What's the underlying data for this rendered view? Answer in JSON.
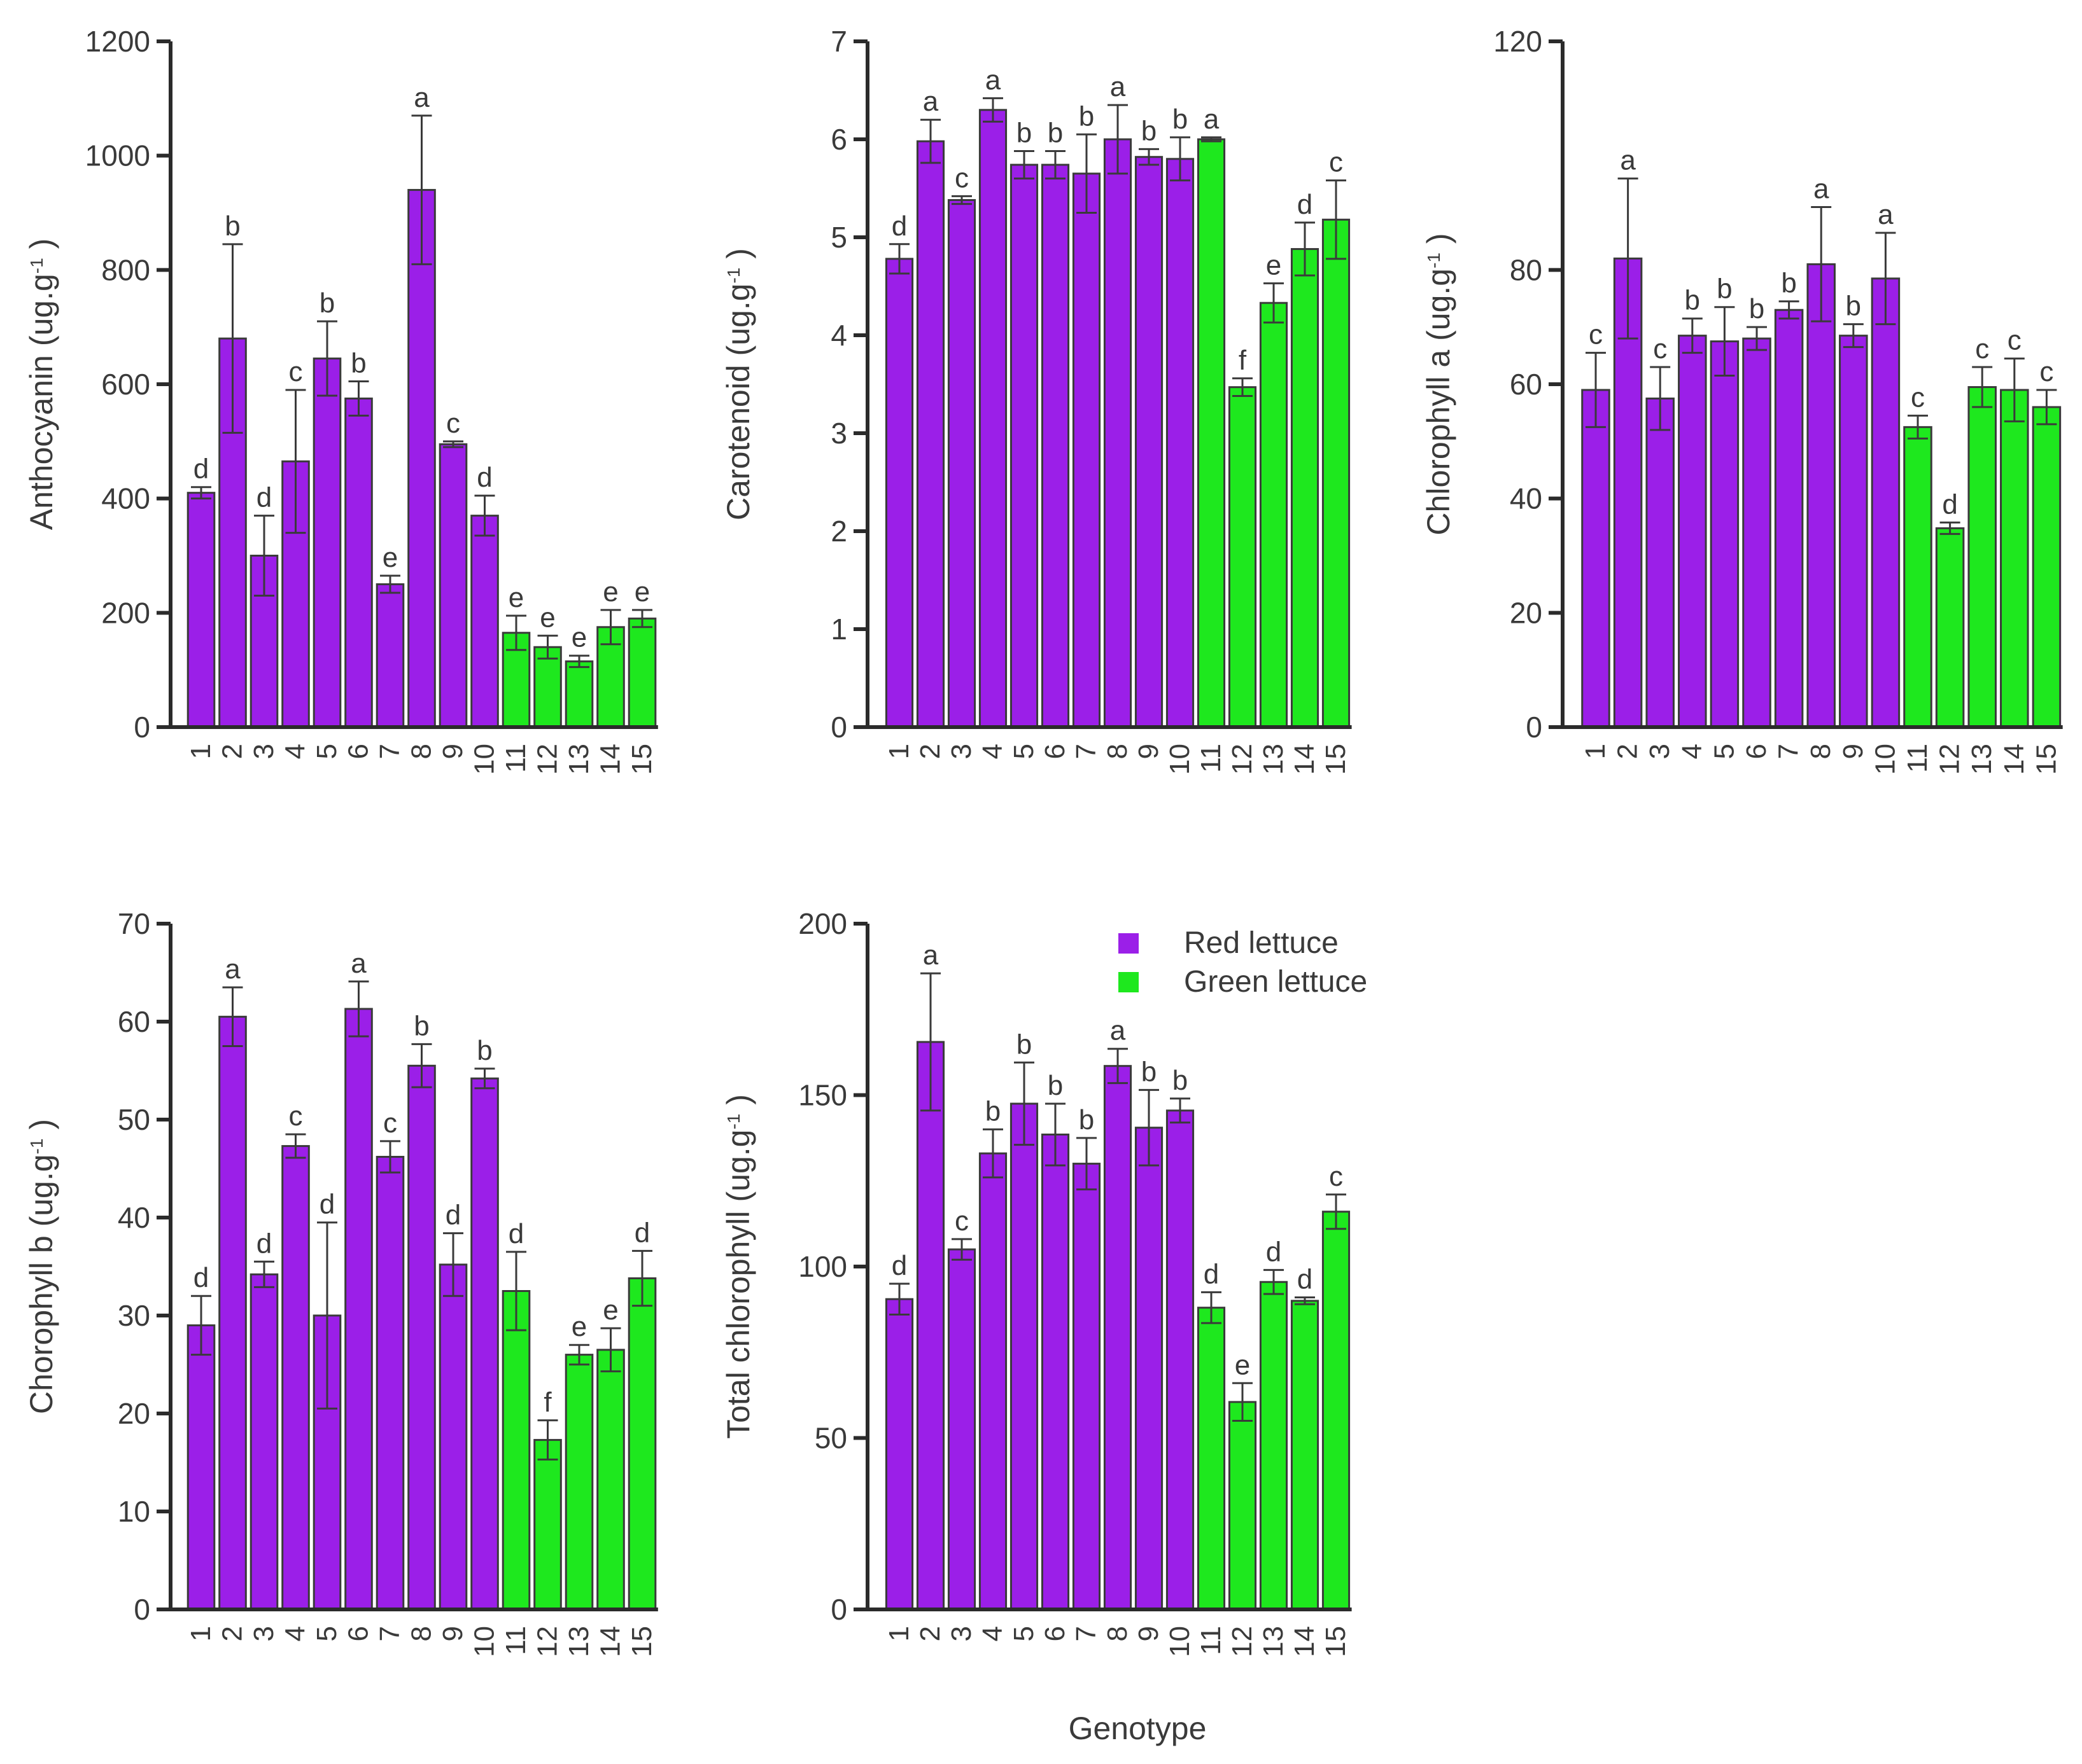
{
  "figure": {
    "shared_xlabel": "Genotype",
    "legend": [
      {
        "label": "Red lettuce",
        "color": "#9b1fe8"
      },
      {
        "label": "Green lettuce",
        "color": "#1ee81e"
      }
    ]
  },
  "chart_data": [
    {
      "type": "bar",
      "ylabel": "Anthocyanin (ug.g",
      "ylabel_sup": "-1",
      "ylabel_close": ")",
      "categories": [
        "1",
        "2",
        "3",
        "4",
        "5",
        "6",
        "7",
        "8",
        "9",
        "10",
        "11",
        "12",
        "13",
        "14",
        "15"
      ],
      "ylim": [
        0,
        1200
      ],
      "yticks": [
        0,
        200,
        400,
        600,
        800,
        1000,
        1200
      ],
      "values": [
        410,
        680,
        300,
        465,
        645,
        575,
        250,
        940,
        495,
        370,
        165,
        140,
        115,
        175,
        190
      ],
      "errors": [
        10,
        165,
        70,
        125,
        65,
        30,
        15,
        130,
        5,
        35,
        30,
        20,
        10,
        30,
        15
      ],
      "groups": [
        "red",
        "red",
        "red",
        "red",
        "red",
        "red",
        "red",
        "red",
        "red",
        "red",
        "green",
        "green",
        "green",
        "green",
        "green"
      ],
      "letters": [
        "d",
        "b",
        "d",
        "c",
        "b",
        "b",
        "e",
        "a",
        "c",
        "d",
        "e",
        "e",
        "e",
        "e",
        "e"
      ]
    },
    {
      "type": "bar",
      "ylabel": "Carotenoid (ug.g",
      "ylabel_sup": "-1",
      "ylabel_close": ")",
      "categories": [
        "1",
        "2",
        "3",
        "4",
        "5",
        "6",
        "7",
        "8",
        "9",
        "10",
        "11",
        "12",
        "13",
        "14",
        "15"
      ],
      "ylim": [
        0,
        7
      ],
      "yticks": [
        0,
        1,
        2,
        3,
        4,
        5,
        6,
        7
      ],
      "values": [
        4.78,
        5.98,
        5.38,
        6.3,
        5.74,
        5.74,
        5.65,
        6.0,
        5.82,
        5.8,
        6.0,
        3.47,
        4.33,
        4.88,
        5.18
      ],
      "errors": [
        0.15,
        0.22,
        0.04,
        0.12,
        0.14,
        0.14,
        0.4,
        0.35,
        0.08,
        0.22,
        0.02,
        0.09,
        0.2,
        0.27,
        0.4
      ],
      "groups": [
        "red",
        "red",
        "red",
        "red",
        "red",
        "red",
        "red",
        "red",
        "red",
        "red",
        "green",
        "green",
        "green",
        "green",
        "green"
      ],
      "letters": [
        "d",
        "a",
        "c",
        "a",
        "b",
        "b",
        "b",
        "a",
        "b",
        "b",
        "a",
        "f",
        "e",
        "d",
        "c"
      ]
    },
    {
      "type": "bar",
      "ylabel": "Chlorophyll a (ug.g",
      "ylabel_sup": "-1",
      "ylabel_close": ")",
      "categories": [
        "1",
        "2",
        "3",
        "4",
        "5",
        "6",
        "7",
        "8",
        "9",
        "10",
        "11",
        "12",
        "13",
        "14",
        "15"
      ],
      "ylim": [
        0,
        120
      ],
      "yticks": [
        0,
        20,
        40,
        60,
        80,
        120
      ],
      "values": [
        59,
        82,
        57.5,
        68.5,
        67.5,
        68,
        73,
        81,
        68.5,
        78.5,
        52.5,
        34.8,
        59.5,
        59,
        56
      ],
      "errors": [
        6.5,
        14,
        5.5,
        3,
        6,
        2,
        1.5,
        10,
        2,
        8,
        2,
        1,
        3.5,
        5.5,
        3
      ],
      "groups": [
        "red",
        "red",
        "red",
        "red",
        "red",
        "red",
        "red",
        "red",
        "red",
        "red",
        "green",
        "green",
        "green",
        "green",
        "green"
      ],
      "letters": [
        "c",
        "a",
        "c",
        "b",
        "b",
        "b",
        "b",
        "a",
        "b",
        "a",
        "c",
        "d",
        "c",
        "c",
        "c"
      ]
    },
    {
      "type": "bar",
      "ylabel": "Chorophyll b (ug.g",
      "ylabel_sup": "-1",
      "ylabel_close": ")",
      "categories": [
        "1",
        "2",
        "3",
        "4",
        "5",
        "6",
        "7",
        "8",
        "9",
        "10",
        "11",
        "12",
        "13",
        "14",
        "15"
      ],
      "ylim": [
        0,
        70
      ],
      "yticks": [
        0,
        10,
        20,
        30,
        40,
        50,
        60,
        70
      ],
      "values": [
        29,
        60.5,
        34.2,
        47.3,
        30,
        61.3,
        46.2,
        55.5,
        35.2,
        54.2,
        32.5,
        17.3,
        26,
        26.5,
        33.8
      ],
      "errors": [
        3,
        3,
        1.3,
        1.2,
        9.5,
        2.8,
        1.6,
        2.2,
        3.2,
        1,
        4,
        2,
        1,
        2.2,
        2.8
      ],
      "groups": [
        "red",
        "red",
        "red",
        "red",
        "red",
        "red",
        "red",
        "red",
        "red",
        "red",
        "green",
        "green",
        "green",
        "green",
        "green"
      ],
      "letters": [
        "d",
        "a",
        "d",
        "c",
        "d",
        "a",
        "c",
        "b",
        "d",
        "b",
        "d",
        "f",
        "e",
        "e",
        "d"
      ]
    },
    {
      "type": "bar",
      "ylabel": "Total chlorophyll (ug.g",
      "ylabel_sup": "-1",
      "ylabel_close": ")",
      "categories": [
        "1",
        "2",
        "3",
        "4",
        "5",
        "6",
        "7",
        "8",
        "9",
        "10",
        "11",
        "12",
        "13",
        "14",
        "15"
      ],
      "ylim": [
        0,
        200
      ],
      "yticks": [
        0,
        50,
        100,
        150,
        200
      ],
      "values": [
        90.5,
        165.5,
        105,
        133,
        147.5,
        138.5,
        130,
        158.5,
        140.5,
        145.5,
        88,
        60.5,
        95.5,
        90,
        116
      ],
      "errors": [
        4.5,
        20,
        3,
        7,
        12,
        9,
        7.5,
        5,
        11,
        3.5,
        4.5,
        5.5,
        3.5,
        1,
        5
      ],
      "groups": [
        "red",
        "red",
        "red",
        "red",
        "red",
        "red",
        "red",
        "red",
        "red",
        "red",
        "green",
        "green",
        "green",
        "green",
        "green"
      ],
      "letters": [
        "d",
        "a",
        "c",
        "b",
        "b",
        "b",
        "b",
        "a",
        "b",
        "b",
        "d",
        "e",
        "d",
        "d",
        "c"
      ]
    }
  ]
}
